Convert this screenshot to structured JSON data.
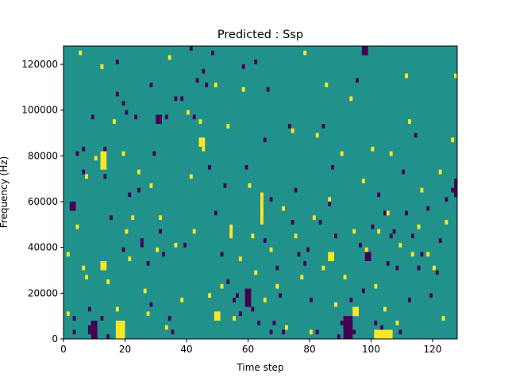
{
  "chart_data": {
    "type": "heatmap",
    "title": "Predicted : Ssp",
    "xlabel": "Time step",
    "ylabel": "Frequency (Hz)",
    "xlim": [
      0,
      128
    ],
    "ylim": [
      0,
      128000
    ],
    "xticks": [
      0,
      20,
      40,
      60,
      80,
      100,
      120
    ],
    "xtick_labels": [
      "0",
      "20",
      "40",
      "60",
      "80",
      "100",
      "120"
    ],
    "yticks": [
      0,
      20000,
      40000,
      60000,
      80000,
      100000,
      120000
    ],
    "ytick_labels": [
      "0",
      "20000",
      "40000",
      "60000",
      "80000",
      "100000",
      "120000"
    ],
    "grid": false,
    "colormap": "viridis",
    "levels": {
      "low": "#440154",
      "mid": "#21918c",
      "high": "#fde725"
    },
    "background_level": "mid",
    "bin_height": 2000,
    "low_cells": [
      [
        3,
        8000
      ],
      [
        3,
        2000
      ],
      [
        6,
        82000
      ],
      [
        6,
        72000
      ],
      [
        8,
        4000
      ],
      [
        8,
        2000
      ],
      [
        10,
        2000
      ],
      [
        10,
        0
      ],
      [
        12,
        8000
      ],
      [
        14,
        0
      ],
      [
        9,
        96000
      ],
      [
        13,
        70000
      ],
      [
        13,
        82000
      ],
      [
        15,
        52000
      ],
      [
        17,
        120000
      ],
      [
        19,
        38000
      ],
      [
        19,
        102000
      ],
      [
        21,
        62000
      ],
      [
        23,
        96000
      ],
      [
        24,
        64000
      ],
      [
        25,
        40000
      ],
      [
        27,
        32000
      ],
      [
        28,
        110000
      ],
      [
        28,
        14000
      ],
      [
        31,
        46000
      ],
      [
        32,
        36000
      ],
      [
        33,
        96000
      ],
      [
        34,
        8000
      ],
      [
        35,
        2000
      ],
      [
        38,
        104000
      ],
      [
        39,
        40000
      ],
      [
        41,
        126000
      ],
      [
        43,
        112000
      ],
      [
        45,
        116000
      ],
      [
        46,
        110000
      ],
      [
        47,
        74000
      ],
      [
        49,
        54000
      ],
      [
        51,
        36000
      ],
      [
        52,
        66000
      ],
      [
        53,
        24000
      ],
      [
        56,
        18000
      ],
      [
        57,
        10000
      ],
      [
        59,
        74000
      ],
      [
        61,
        12000
      ],
      [
        62,
        120000
      ],
      [
        63,
        6000
      ],
      [
        65,
        86000
      ],
      [
        65,
        42000
      ],
      [
        67,
        60000
      ],
      [
        67,
        2000
      ],
      [
        68,
        6000
      ],
      [
        69,
        30000
      ],
      [
        71,
        2000
      ],
      [
        73,
        92000
      ],
      [
        74,
        50000
      ],
      [
        76,
        36000
      ],
      [
        78,
        32000
      ],
      [
        80,
        16000
      ],
      [
        82,
        2000
      ],
      [
        84,
        92000
      ],
      [
        86,
        58000
      ],
      [
        88,
        44000
      ],
      [
        89,
        0
      ],
      [
        90,
        6000
      ],
      [
        91,
        4000
      ],
      [
        93,
        16000
      ],
      [
        94,
        2000
      ],
      [
        96,
        40000
      ],
      [
        97,
        20000
      ],
      [
        100,
        48000
      ],
      [
        101,
        6000
      ],
      [
        103,
        4000
      ],
      [
        104,
        54000
      ],
      [
        106,
        44000
      ],
      [
        107,
        46000
      ],
      [
        108,
        30000
      ],
      [
        110,
        72000
      ],
      [
        111,
        54000
      ],
      [
        112,
        16000
      ],
      [
        113,
        44000
      ],
      [
        114,
        88000
      ],
      [
        116,
        36000
      ],
      [
        119,
        18000
      ],
      [
        121,
        28000
      ],
      [
        124,
        60000
      ],
      [
        126,
        64000
      ],
      [
        4,
        80000
      ],
      [
        8,
        12000
      ],
      [
        17,
        106000
      ],
      [
        20,
        98000
      ],
      [
        25,
        42000
      ],
      [
        29,
        80000
      ],
      [
        36,
        104000
      ],
      [
        42,
        96000
      ],
      [
        48,
        124000
      ],
      [
        55,
        16000
      ],
      [
        58,
        118000
      ],
      [
        66,
        108000
      ],
      [
        70,
        18000
      ],
      [
        75,
        64000
      ],
      [
        79,
        38000
      ],
      [
        83,
        50000
      ],
      [
        87,
        74000
      ],
      [
        95,
        112000
      ],
      [
        102,
        62000
      ],
      [
        105,
        32000
      ],
      [
        109,
        2000
      ],
      [
        115,
        30000
      ],
      [
        118,
        56000
      ],
      [
        122,
        42000
      ]
    ],
    "low_blocks": [
      [
        2,
        56000,
        2,
        4000
      ],
      [
        9,
        0,
        2,
        8000
      ],
      [
        30,
        94000,
        2,
        4000
      ],
      [
        59,
        14000,
        2,
        8000
      ],
      [
        91,
        0,
        3,
        10000
      ],
      [
        97,
        124000,
        2,
        4000
      ],
      [
        98,
        34000,
        2,
        4000
      ],
      [
        127,
        62000,
        1,
        8000
      ]
    ],
    "high_cells": [
      [
        1,
        10000
      ],
      [
        1,
        36000
      ],
      [
        4,
        48000
      ],
      [
        5,
        124000
      ],
      [
        6,
        30000
      ],
      [
        7,
        70000
      ],
      [
        7,
        26000
      ],
      [
        10,
        78000
      ],
      [
        12,
        118000
      ],
      [
        14,
        24000
      ],
      [
        16,
        94000
      ],
      [
        17,
        12000
      ],
      [
        19,
        80000
      ],
      [
        20,
        46000
      ],
      [
        21,
        34000
      ],
      [
        22,
        52000
      ],
      [
        24,
        72000
      ],
      [
        26,
        20000
      ],
      [
        27,
        10000
      ],
      [
        28,
        66000
      ],
      [
        30,
        38000
      ],
      [
        31,
        52000
      ],
      [
        33,
        4000
      ],
      [
        34,
        122000
      ],
      [
        36,
        40000
      ],
      [
        38,
        16000
      ],
      [
        40,
        98000
      ],
      [
        41,
        70000
      ],
      [
        42,
        46000
      ],
      [
        44,
        94000
      ],
      [
        45,
        82000
      ],
      [
        47,
        18000
      ],
      [
        49,
        110000
      ],
      [
        51,
        22000
      ],
      [
        53,
        92000
      ],
      [
        55,
        8000
      ],
      [
        57,
        34000
      ],
      [
        58,
        108000
      ],
      [
        60,
        66000
      ],
      [
        61,
        44000
      ],
      [
        62,
        28000
      ],
      [
        64,
        62000
      ],
      [
        64,
        54000
      ],
      [
        65,
        16000
      ],
      [
        67,
        38000
      ],
      [
        69,
        22000
      ],
      [
        71,
        56000
      ],
      [
        72,
        4000
      ],
      [
        74,
        90000
      ],
      [
        75,
        44000
      ],
      [
        77,
        26000
      ],
      [
        78,
        124000
      ],
      [
        80,
        2000
      ],
      [
        81,
        52000
      ],
      [
        82,
        88000
      ],
      [
        84,
        30000
      ],
      [
        85,
        110000
      ],
      [
        86,
        60000
      ],
      [
        88,
        14000
      ],
      [
        90,
        80000
      ],
      [
        91,
        26000
      ],
      [
        93,
        104000
      ],
      [
        94,
        46000
      ],
      [
        95,
        12000
      ],
      [
        97,
        68000
      ],
      [
        98,
        38000
      ],
      [
        100,
        82000
      ],
      [
        101,
        22000
      ],
      [
        102,
        46000
      ],
      [
        104,
        12000
      ],
      [
        105,
        54000
      ],
      [
        106,
        80000
      ],
      [
        108,
        6000
      ],
      [
        109,
        40000
      ],
      [
        111,
        114000
      ],
      [
        112,
        94000
      ],
      [
        113,
        36000
      ],
      [
        115,
        48000
      ],
      [
        116,
        64000
      ],
      [
        118,
        36000
      ],
      [
        120,
        30000
      ],
      [
        122,
        72000
      ],
      [
        123,
        8000
      ],
      [
        124,
        50000
      ],
      [
        126,
        86000
      ],
      [
        127,
        114000
      ]
    ],
    "high_blocks": [
      [
        12,
        30000,
        2,
        4000
      ],
      [
        17,
        0,
        3,
        8000
      ],
      [
        49,
        8000,
        2,
        4000
      ],
      [
        64,
        50000,
        1,
        12000
      ],
      [
        94,
        10000,
        2,
        4000
      ],
      [
        101,
        0,
        6,
        4000
      ],
      [
        44,
        84000,
        2,
        4000
      ],
      [
        86,
        34000,
        2,
        4000
      ],
      [
        12,
        74000,
        2,
        8000
      ],
      [
        54,
        44000,
        1,
        6000
      ]
    ]
  }
}
